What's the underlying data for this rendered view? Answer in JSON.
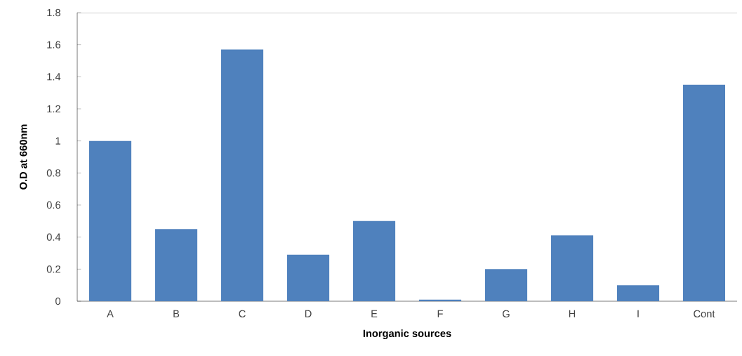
{
  "chart_data": {
    "type": "bar",
    "xlabel": "Inorganic sources",
    "ylabel": "O.D at 660nm",
    "categories": [
      "A",
      "B",
      "C",
      "D",
      "E",
      "F",
      "G",
      "H",
      "I",
      "Cont"
    ],
    "values": [
      1.0,
      0.45,
      1.57,
      0.29,
      0.5,
      0.01,
      0.2,
      0.41,
      0.1,
      1.35
    ],
    "color": "#4f81bd",
    "ylim": [
      0,
      1.8
    ],
    "yticks": [
      0,
      0.2,
      0.4,
      0.6,
      0.8,
      1,
      1.2,
      1.4,
      1.6,
      1.8
    ],
    "grid": false
  }
}
